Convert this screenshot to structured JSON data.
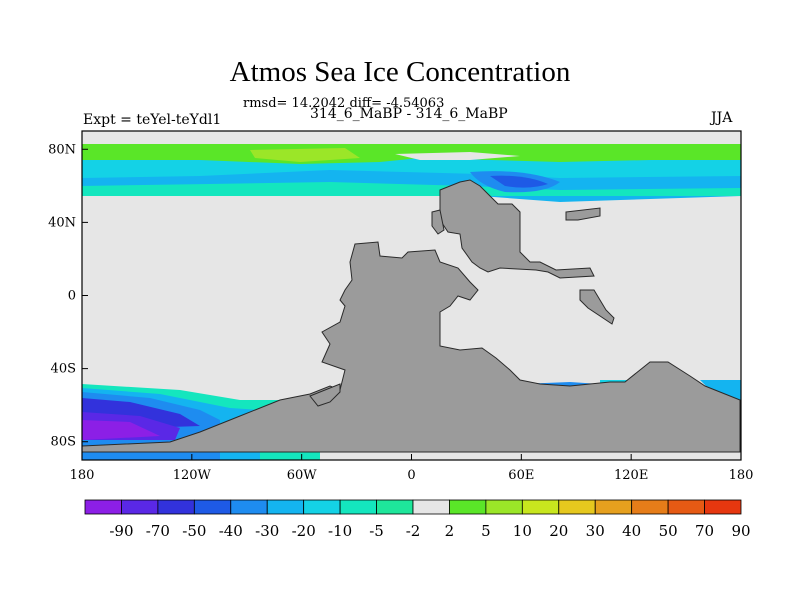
{
  "title": "Atmos Sea Ice Concentration",
  "stats": "rmsd= 14.2042 diff= -4.54063",
  "experiment": "Expt = teYel-teYdl1",
  "run": "314_6_MaBP - 314_6_MaBP",
  "season": "JJA",
  "map": {
    "lon_range": [
      -180,
      180
    ],
    "lat_range": [
      -90,
      90
    ],
    "lat_ticks": [
      {
        "value": 80,
        "label": "80N"
      },
      {
        "value": 40,
        "label": "40N"
      },
      {
        "value": 0,
        "label": "0"
      },
      {
        "value": -40,
        "label": "40S"
      },
      {
        "value": -80,
        "label": "80S"
      }
    ],
    "lon_ticks": [
      {
        "value": -180,
        "label": "180"
      },
      {
        "value": -120,
        "label": "120W"
      },
      {
        "value": -60,
        "label": "60W"
      },
      {
        "value": 0,
        "label": "0"
      },
      {
        "value": 60,
        "label": "60E"
      },
      {
        "value": 120,
        "label": "120E"
      },
      {
        "value": 180,
        "label": "180"
      }
    ],
    "colors": {
      "ocean_nochange": "#e6e6e6",
      "land": "#9b9b9b",
      "coast": "#2a2a2a"
    }
  },
  "colorbar": {
    "labels": [
      "-90",
      "-70",
      "-50",
      "-40",
      "-30",
      "-20",
      "-10",
      "-5",
      "-2",
      "2",
      "5",
      "10",
      "20",
      "30",
      "40",
      "50",
      "70",
      "90"
    ],
    "colors": [
      "#8c1fe6",
      "#5a28e6",
      "#3232dc",
      "#1e5ae6",
      "#1e8cf0",
      "#14b4f0",
      "#14d2e6",
      "#14e6be",
      "#1ee69b",
      "#e6e6e6",
      "#5ae628",
      "#9be628",
      "#c8e61e",
      "#e6c81e",
      "#e6a01e",
      "#e67d19",
      "#e65a14",
      "#e6370f"
    ]
  }
}
